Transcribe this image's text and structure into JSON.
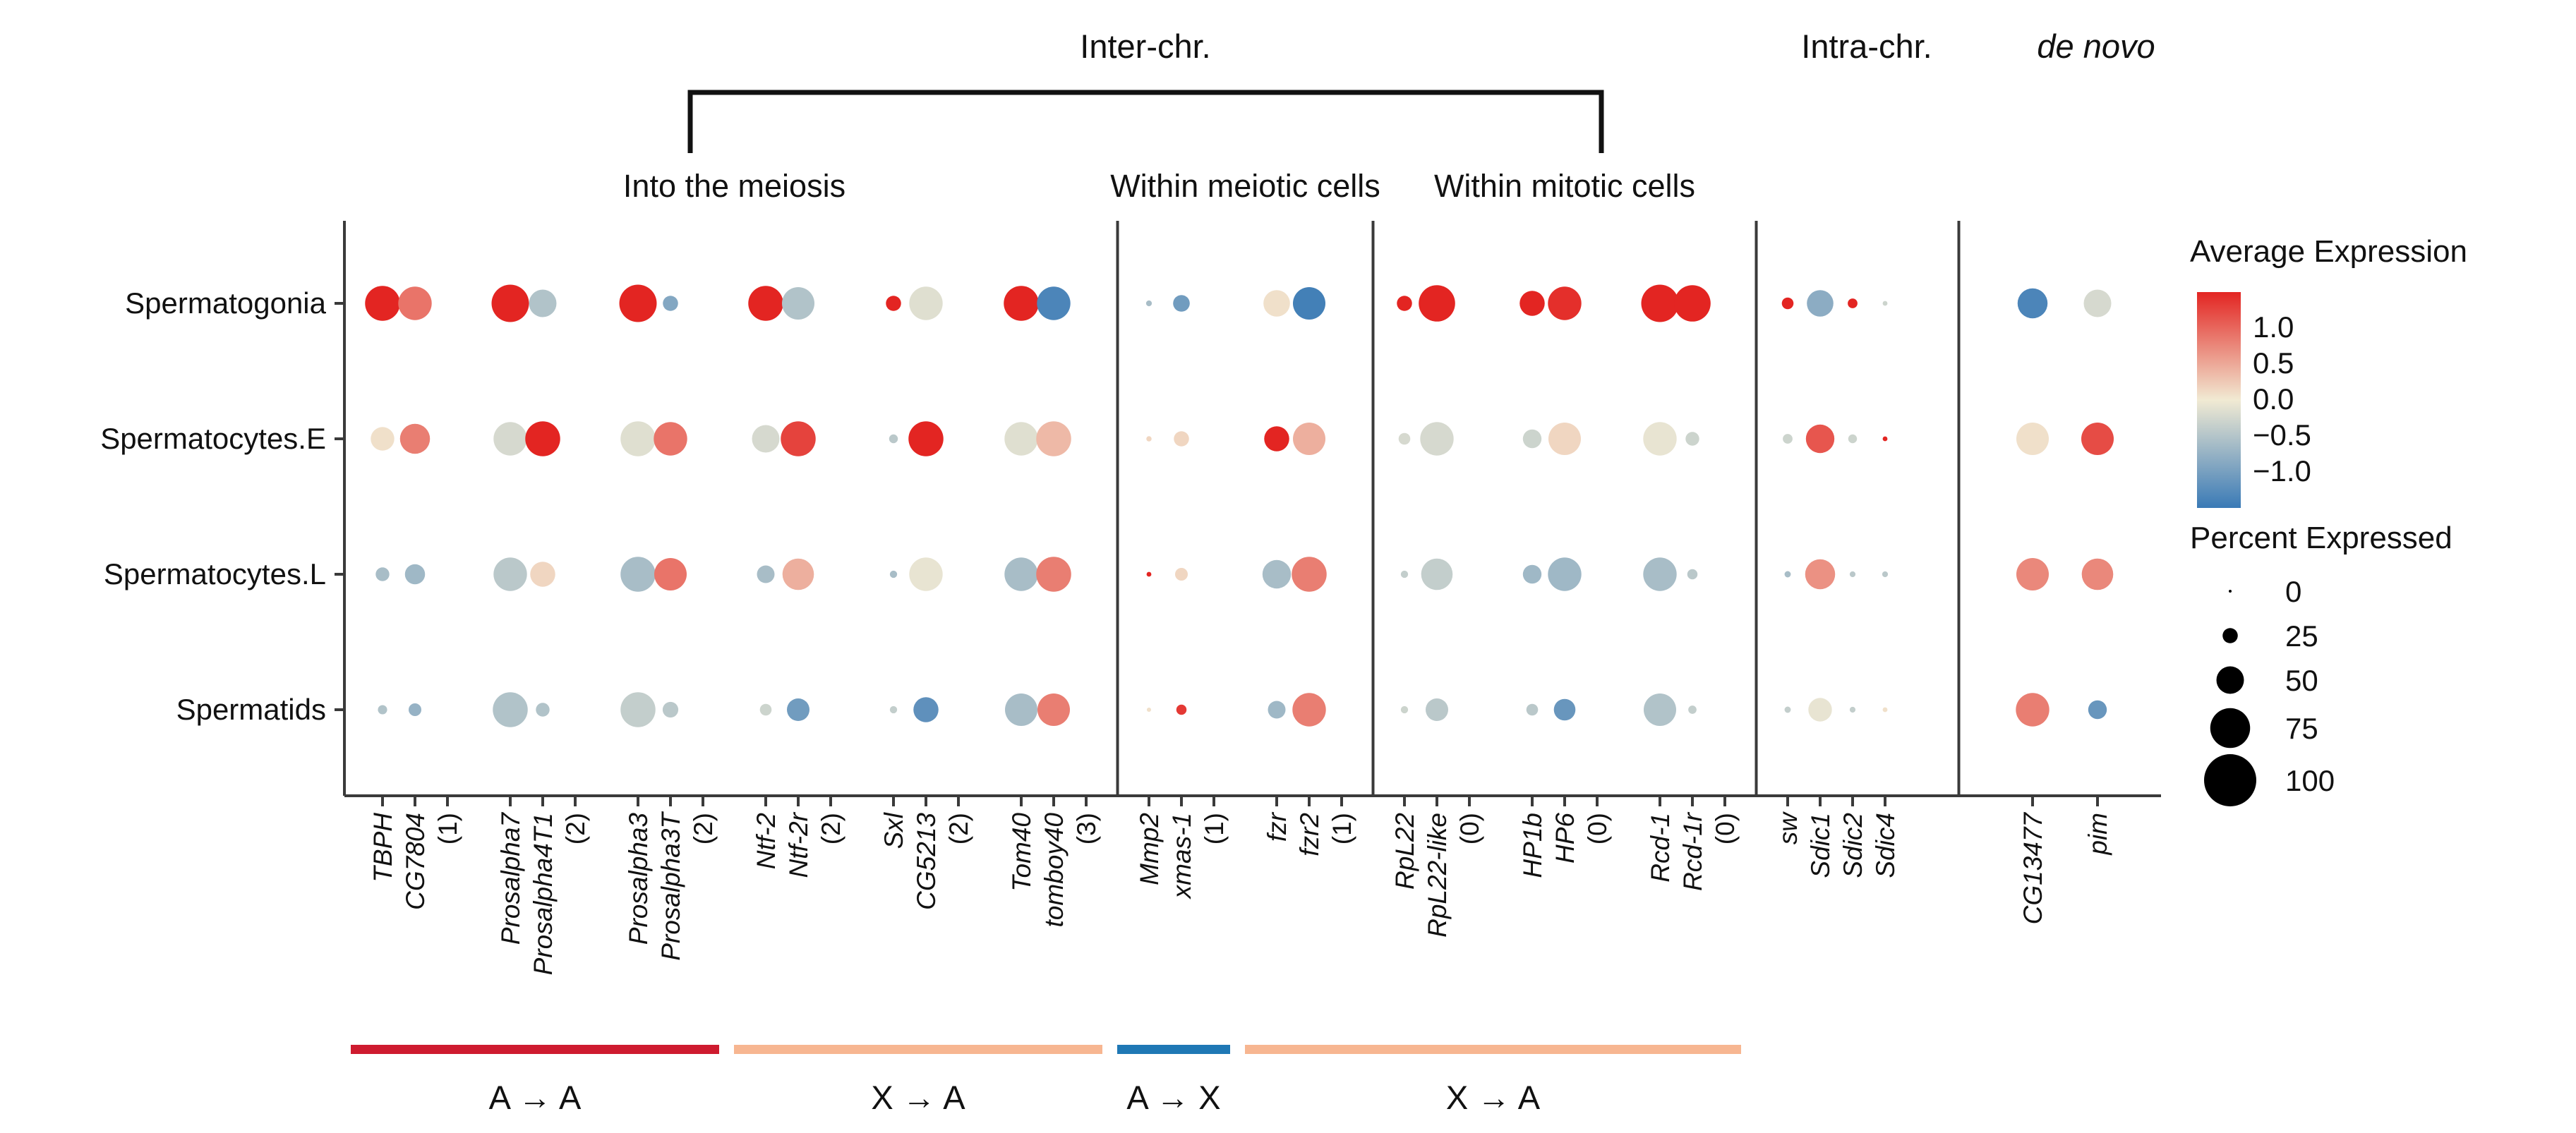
{
  "figure": {
    "top_labels": {
      "inter": "Inter-chr."
    },
    "arrows": [
      {
        "label": "A → A",
        "color": "#CE1B2F",
        "from": "TBPH",
        "to": "Prosalpha3T"
      },
      {
        "label": "X → A",
        "color": "#F7B691",
        "from": "Ntf-2",
        "to": "tomboy40"
      },
      {
        "label": "A → X",
        "color": "#1F78B5",
        "from": "Mmp2",
        "to": "xmas-1"
      },
      {
        "label": "X → A",
        "color": "#F7B691",
        "from": "fzr",
        "to": "Rcd-1r"
      }
    ]
  },
  "legend": {
    "avg_title": "Average Expression",
    "avg_ticks": [
      "1.0",
      "0.5",
      "0.0",
      "−0.5",
      "−1.0"
    ],
    "avg_tick_values": [
      1.0,
      0.5,
      0.0,
      -0.5,
      -1.0
    ],
    "pct_title": "Percent Expressed",
    "pct_ticks": [
      "0",
      "25",
      "50",
      "75",
      "100"
    ],
    "pct_tick_values": [
      0,
      25,
      50,
      75,
      100
    ]
  },
  "chart_data": {
    "type": "scatter",
    "variant": "dotplot",
    "encoding": {
      "color": "Average Expression",
      "size": "Percent Expressed"
    },
    "color_scale": {
      "neg": "#3A7AB6",
      "mid": "#F1EAD3",
      "pos": "#E32522",
      "range": [
        -1.0,
        1.0
      ]
    },
    "rows": [
      "Spermatogonia",
      "Spermatocytes.E",
      "Spermatocytes.L",
      "Spermatids"
    ],
    "sections": [
      {
        "name": "Into the meiosis",
        "groups": [
          {
            "genes": [
              "TBPH",
              "CG7804"
            ],
            "count": "(1)"
          },
          {
            "genes": [
              "Prosalpha7",
              "Prosalpha4T1"
            ],
            "count": "(2)"
          },
          {
            "genes": [
              "Prosalpha3",
              "Prosalpha3T"
            ],
            "count": "(2)"
          },
          {
            "genes": [
              "Ntf-2",
              "Ntf-2r"
            ],
            "count": "(2)"
          },
          {
            "genes": [
              "Sxl",
              "CG5213"
            ],
            "count": "(2)"
          },
          {
            "genes": [
              "Tom40",
              "tomboy40"
            ],
            "count": "(3)"
          }
        ]
      },
      {
        "name": "Within meiotic cells",
        "groups": [
          {
            "genes": [
              "Mmp2",
              "xmas-1"
            ],
            "count": "(1)"
          },
          {
            "genes": [
              "fzr",
              "fzr2"
            ],
            "count": "(1)"
          }
        ]
      },
      {
        "name": "Within mitotic cells",
        "groups": [
          {
            "genes": [
              "RpL22",
              "RpL22-like"
            ],
            "count": "(0)"
          },
          {
            "genes": [
              "HP1b",
              "HP6"
            ],
            "count": "(0)"
          },
          {
            "genes": [
              "Rcd-1",
              "Rcd-1r"
            ],
            "count": "(0)"
          }
        ]
      },
      {
        "name": "Intra-chr.",
        "groups": [
          {
            "genes": [
              "sw",
              "Sdic1",
              "Sdic2",
              "Sdic4"
            ],
            "count": null
          }
        ]
      },
      {
        "name": "de novo",
        "groups": [
          {
            "genes": [
              "CG13477",
              "pim"
            ],
            "count": null
          }
        ]
      }
    ],
    "gene_order": [
      "TBPH",
      "CG7804",
      "Prosalpha7",
      "Prosalpha4T1",
      "Prosalpha3",
      "Prosalpha3T",
      "Ntf-2",
      "Ntf-2r",
      "Sxl",
      "CG5213",
      "Tom40",
      "tomboy40",
      "Mmp2",
      "xmas-1",
      "fzr",
      "fzr2",
      "RpL22",
      "RpL22-like",
      "HP1b",
      "HP6",
      "Rcd-1",
      "Rcd-1r",
      "sw",
      "Sdic1",
      "Sdic2",
      "Sdic4",
      "CG13477",
      "pim"
    ],
    "values": {
      "Spermatogonia": [
        [
          1.0,
          65
        ],
        [
          0.6,
          62
        ],
        [
          1.0,
          70
        ],
        [
          -0.35,
          50
        ],
        [
          1.0,
          70
        ],
        [
          -0.6,
          25
        ],
        [
          1.0,
          65
        ],
        [
          -0.35,
          60
        ],
        [
          1.0,
          25
        ],
        [
          -0.1,
          62
        ],
        [
          1.0,
          65
        ],
        [
          -0.9,
          62
        ],
        [
          -0.4,
          6
        ],
        [
          -0.7,
          28
        ],
        [
          0.05,
          48
        ],
        [
          -0.95,
          60
        ],
        [
          1.0,
          25
        ],
        [
          1.0,
          68
        ],
        [
          1.0,
          45
        ],
        [
          0.95,
          62
        ],
        [
          1.0,
          70
        ],
        [
          1.0,
          68
        ],
        [
          1.0,
          18
        ],
        [
          -0.55,
          48
        ],
        [
          1.0,
          14
        ],
        [
          -0.2,
          4
        ],
        [
          -0.9,
          55
        ],
        [
          -0.15,
          50
        ]
      ],
      "Spermatocytes.E": [
        [
          0.05,
          42
        ],
        [
          0.55,
          55
        ],
        [
          -0.15,
          62
        ],
        [
          1.0,
          65
        ],
        [
          -0.1,
          65
        ],
        [
          0.6,
          62
        ],
        [
          -0.15,
          50
        ],
        [
          0.85,
          65
        ],
        [
          -0.3,
          12
        ],
        [
          1.0,
          65
        ],
        [
          -0.1,
          62
        ],
        [
          0.25,
          65
        ],
        [
          0.1,
          5
        ],
        [
          0.1,
          25
        ],
        [
          1.0,
          45
        ],
        [
          0.3,
          60
        ],
        [
          -0.15,
          18
        ],
        [
          -0.15,
          62
        ],
        [
          -0.2,
          32
        ],
        [
          0.1,
          60
        ],
        [
          -0.05,
          62
        ],
        [
          -0.2,
          22
        ],
        [
          -0.2,
          14
        ],
        [
          0.75,
          52
        ],
        [
          -0.2,
          12
        ],
        [
          1.0,
          4
        ],
        [
          0.05,
          60
        ],
        [
          0.8,
          60
        ]
      ],
      "Spermatocytes.L": [
        [
          -0.4,
          22
        ],
        [
          -0.45,
          35
        ],
        [
          -0.3,
          62
        ],
        [
          0.1,
          45
        ],
        [
          -0.4,
          65
        ],
        [
          0.6,
          60
        ],
        [
          -0.4,
          30
        ],
        [
          0.3,
          58
        ],
        [
          -0.4,
          9
        ],
        [
          -0.05,
          62
        ],
        [
          -0.4,
          62
        ],
        [
          0.55,
          65
        ],
        [
          1.0,
          4
        ],
        [
          0.1,
          20
        ],
        [
          -0.4,
          52
        ],
        [
          0.55,
          65
        ],
        [
          -0.25,
          9
        ],
        [
          -0.25,
          58
        ],
        [
          -0.45,
          32
        ],
        [
          -0.45,
          62
        ],
        [
          -0.4,
          62
        ],
        [
          -0.3,
          15
        ],
        [
          -0.4,
          7
        ],
        [
          0.45,
          55
        ],
        [
          -0.3,
          6
        ],
        [
          -0.3,
          6
        ],
        [
          0.5,
          60
        ],
        [
          0.5,
          58
        ]
      ],
      "Spermatids": [
        [
          -0.35,
          13
        ],
        [
          -0.5,
          20
        ],
        [
          -0.35,
          65
        ],
        [
          -0.35,
          22
        ],
        [
          -0.25,
          65
        ],
        [
          -0.3,
          26
        ],
        [
          -0.2,
          18
        ],
        [
          -0.7,
          40
        ],
        [
          -0.25,
          9
        ],
        [
          -0.8,
          45
        ],
        [
          -0.4,
          60
        ],
        [
          0.55,
          60
        ],
        [
          0.05,
          3
        ],
        [
          0.9,
          15
        ],
        [
          -0.45,
          30
        ],
        [
          0.55,
          62
        ],
        [
          -0.2,
          9
        ],
        [
          -0.3,
          40
        ],
        [
          -0.3,
          18
        ],
        [
          -0.75,
          38
        ],
        [
          -0.35,
          60
        ],
        [
          -0.25,
          11
        ],
        [
          -0.25,
          7
        ],
        [
          -0.05,
          42
        ],
        [
          -0.25,
          6
        ],
        [
          0.05,
          4
        ],
        [
          0.55,
          62
        ],
        [
          -0.75,
          32
        ]
      ]
    }
  }
}
